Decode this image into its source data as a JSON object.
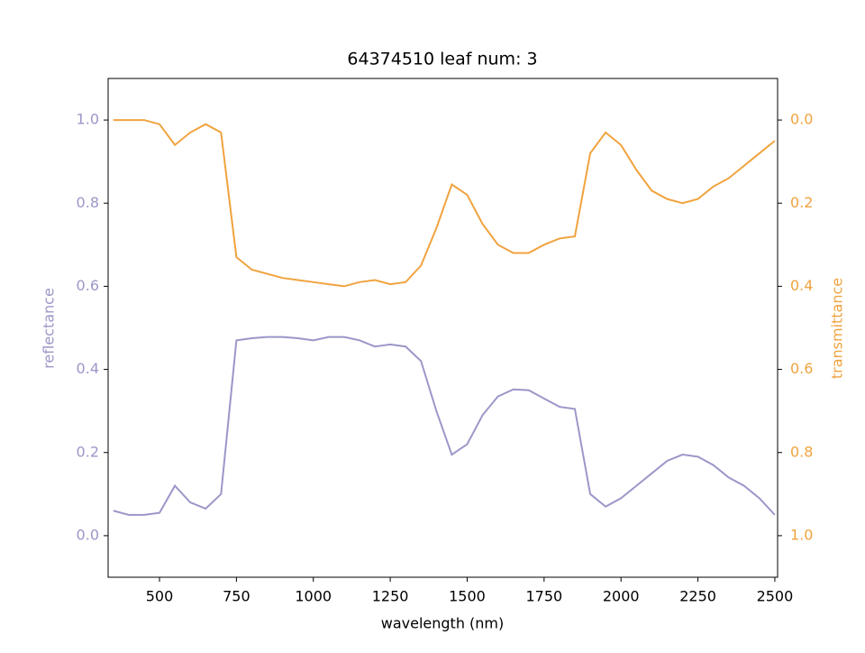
{
  "chart_data": {
    "type": "line",
    "title": "64374510 leaf num: 3",
    "xlabel": "wavelength (nm)",
    "ylabel": "reflectance",
    "y2label": "transmittance",
    "x": [
      350,
      400,
      450,
      500,
      550,
      600,
      650,
      700,
      750,
      800,
      850,
      900,
      950,
      1000,
      1050,
      1100,
      1150,
      1200,
      1250,
      1300,
      1350,
      1400,
      1450,
      1500,
      1550,
      1600,
      1650,
      1700,
      1750,
      1800,
      1850,
      1900,
      1950,
      2000,
      2050,
      2100,
      2150,
      2200,
      2250,
      2300,
      2350,
      2400,
      2450,
      2500
    ],
    "series": [
      {
        "name": "reflectance",
        "color": "#9b97c8",
        "values": [
          0.06,
          0.05,
          0.05,
          0.055,
          0.12,
          0.08,
          0.065,
          0.1,
          0.47,
          0.475,
          0.478,
          0.478,
          0.475,
          0.47,
          0.478,
          0.478,
          0.47,
          0.455,
          0.46,
          0.455,
          0.42,
          0.3,
          0.195,
          0.22,
          0.29,
          0.335,
          0.352,
          0.35,
          0.33,
          0.31,
          0.305,
          0.1,
          0.07,
          0.09,
          0.12,
          0.15,
          0.18,
          0.195,
          0.19,
          0.17,
          0.14,
          0.12,
          0.09,
          0.05
        ]
      },
      {
        "name": "transmittance",
        "color": "#f0a33f",
        "axis": "y2",
        "values": [
          0.0,
          0.0,
          0.0,
          0.01,
          0.06,
          0.03,
          0.01,
          0.03,
          0.33,
          0.36,
          0.37,
          0.38,
          0.385,
          0.39,
          0.395,
          0.4,
          0.39,
          0.385,
          0.395,
          0.39,
          0.35,
          0.26,
          0.155,
          0.18,
          0.25,
          0.3,
          0.32,
          0.32,
          0.3,
          0.285,
          0.28,
          0.08,
          0.03,
          0.06,
          0.12,
          0.17,
          0.19,
          0.2,
          0.19,
          0.16,
          0.14,
          0.11,
          0.08,
          0.05
        ]
      }
    ],
    "xlim": [
      333,
      2509
    ],
    "xticks": [
      500,
      750,
      1000,
      1250,
      1500,
      1750,
      2000,
      2250,
      2500
    ],
    "ylim": [
      -0.1,
      1.1
    ],
    "yticks": [
      {
        "value": 0.0,
        "label": "0.0"
      },
      0.2,
      0.4,
      0.6,
      0.8,
      {
        "value": 1.0,
        "label": "1.0"
      }
    ],
    "y2lim": [
      1.1,
      -0.1
    ],
    "y2ticks": [
      {
        "value": 0.0,
        "label": "0.0"
      },
      0.2,
      0.4,
      0.6,
      0.8,
      {
        "value": 1.0,
        "label": "1.0"
      }
    ]
  }
}
